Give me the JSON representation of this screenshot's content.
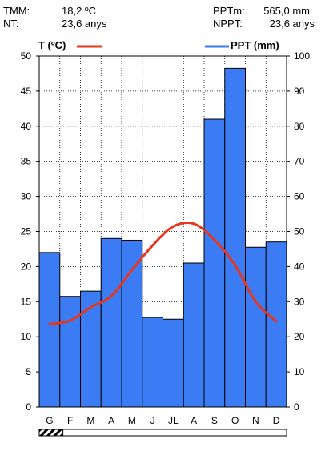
{
  "header": {
    "tmm_label": "TMM:",
    "tmm_value": "18,2 ºC",
    "nt_label": "NT:",
    "nt_value": "23,6 anys",
    "pptm_label": "PPTm:",
    "pptm_value": "565,0 mm",
    "nppt_label": "NPPT:",
    "nppt_value": "23,6 anys"
  },
  "legend": {
    "temp_label": "T (ºC)",
    "ppt_label": "PPT (mm)"
  },
  "colors": {
    "bar_fill": "#3b7cf4",
    "temp_line": "#e8361c",
    "axis": "#000000"
  },
  "chart_data": {
    "type": "bar",
    "categories": [
      "G",
      "F",
      "M",
      "A",
      "M",
      "J",
      "JL",
      "A",
      "S",
      "O",
      "N",
      "D"
    ],
    "series": [
      {
        "axis": "right",
        "type": "bar",
        "values": [
          44,
          31.5,
          33,
          48,
          47.5,
          25.5,
          25,
          41,
          82,
          96.5,
          45.5,
          47
        ]
      },
      {
        "axis": "left",
        "type": "line",
        "values": [
          11.8,
          12.3,
          14.2,
          15.8,
          19.5,
          23,
          25.7,
          26.1,
          23.8,
          20.2,
          15,
          12.2
        ]
      }
    ],
    "y_left": {
      "min": 0,
      "max": 50,
      "ticks": [
        0,
        5,
        10,
        15,
        20,
        25,
        30,
        35,
        40,
        45,
        50
      ]
    },
    "y_right": {
      "min": 0,
      "max": 100,
      "ticks": [
        0,
        10,
        20,
        30,
        40,
        50,
        60,
        70,
        80,
        90,
        100
      ]
    },
    "grid": true,
    "frost_period": {
      "hatched_months": 1.15
    }
  }
}
